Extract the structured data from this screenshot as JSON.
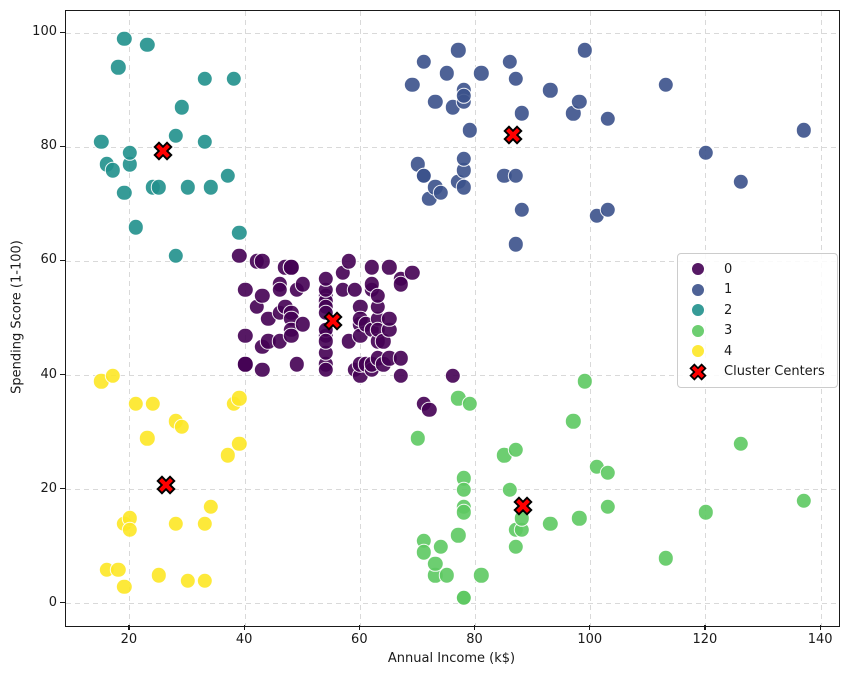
{
  "chart_data": {
    "type": "scatter",
    "title": "",
    "xlabel": "Annual Income (k$)",
    "ylabel": "Spending Score (1-100)",
    "xlim": [
      8.9,
      143.1
    ],
    "ylim": [
      -3.9,
      103.9
    ],
    "x_ticks": [
      20,
      40,
      60,
      80,
      100,
      120,
      140
    ],
    "y_ticks": [
      0,
      20,
      40,
      60,
      80,
      100
    ],
    "grid": true,
    "grid_style": "dashed",
    "legend_position": "center-right",
    "colors": {
      "cluster0": "#440154",
      "cluster1": "#3b528b",
      "cluster2": "#21918c",
      "cluster3": "#5ec962",
      "cluster4": "#fde725",
      "center_fill": "#ff0000",
      "center_edge": "#000000",
      "grid": "#d9d9d9",
      "spine": "#1a1a1a"
    },
    "series": [
      {
        "label": "0",
        "color": "#440154",
        "points": [
          [
            39,
            61
          ],
          [
            40,
            55
          ],
          [
            40,
            47
          ],
          [
            40,
            42
          ],
          [
            40,
            42
          ],
          [
            42,
            52
          ],
          [
            42,
            60
          ],
          [
            43,
            54
          ],
          [
            43,
            60
          ],
          [
            43,
            45
          ],
          [
            43,
            41
          ],
          [
            44,
            50
          ],
          [
            44,
            46
          ],
          [
            46,
            51
          ],
          [
            46,
            46
          ],
          [
            46,
            56
          ],
          [
            46,
            55
          ],
          [
            47,
            52
          ],
          [
            47,
            59
          ],
          [
            48,
            51
          ],
          [
            48,
            59
          ],
          [
            48,
            50
          ],
          [
            48,
            48
          ],
          [
            48,
            59
          ],
          [
            48,
            47
          ],
          [
            49,
            55
          ],
          [
            49,
            42
          ],
          [
            50,
            49
          ],
          [
            50,
            56
          ],
          [
            54,
            47
          ],
          [
            54,
            54
          ],
          [
            54,
            53
          ],
          [
            54,
            48
          ],
          [
            54,
            52
          ],
          [
            54,
            42
          ],
          [
            54,
            51
          ],
          [
            54,
            55
          ],
          [
            54,
            41
          ],
          [
            54,
            44
          ],
          [
            54,
            57
          ],
          [
            54,
            46
          ],
          [
            57,
            58
          ],
          [
            57,
            55
          ],
          [
            58,
            60
          ],
          [
            58,
            46
          ],
          [
            59,
            55
          ],
          [
            59,
            41
          ],
          [
            60,
            49
          ],
          [
            60,
            40
          ],
          [
            60,
            42
          ],
          [
            60,
            52
          ],
          [
            60,
            47
          ],
          [
            60,
            50
          ],
          [
            61,
            42
          ],
          [
            61,
            49
          ],
          [
            62,
            41
          ],
          [
            62,
            48
          ],
          [
            62,
            59
          ],
          [
            62,
            55
          ],
          [
            62,
            56
          ],
          [
            62,
            42
          ],
          [
            63,
            50
          ],
          [
            63,
            46
          ],
          [
            63,
            43
          ],
          [
            63,
            48
          ],
          [
            63,
            52
          ],
          [
            63,
            54
          ],
          [
            64,
            42
          ],
          [
            64,
            46
          ],
          [
            65,
            48
          ],
          [
            65,
            50
          ],
          [
            65,
            43
          ],
          [
            65,
            59
          ],
          [
            67,
            43
          ],
          [
            67,
            57
          ],
          [
            67,
            56
          ],
          [
            67,
            40
          ],
          [
            69,
            58
          ],
          [
            71,
            35
          ],
          [
            72,
            34
          ],
          [
            76,
            40
          ]
        ]
      },
      {
        "label": "1",
        "color": "#3b528b",
        "points": [
          [
            69,
            91
          ],
          [
            70,
            77
          ],
          [
            71,
            95
          ],
          [
            71,
            75
          ],
          [
            71,
            75
          ],
          [
            72,
            71
          ],
          [
            73,
            88
          ],
          [
            73,
            73
          ],
          [
            74,
            72
          ],
          [
            75,
            93
          ],
          [
            76,
            87
          ],
          [
            77,
            97
          ],
          [
            77,
            74
          ],
          [
            78,
            90
          ],
          [
            78,
            88
          ],
          [
            78,
            76
          ],
          [
            78,
            89
          ],
          [
            78,
            78
          ],
          [
            78,
            73
          ],
          [
            79,
            83
          ],
          [
            81,
            93
          ],
          [
            85,
            75
          ],
          [
            86,
            95
          ],
          [
            87,
            63
          ],
          [
            87,
            75
          ],
          [
            87,
            92
          ],
          [
            88,
            86
          ],
          [
            88,
            69
          ],
          [
            93,
            90
          ],
          [
            97,
            86
          ],
          [
            98,
            88
          ],
          [
            99,
            97
          ],
          [
            101,
            68
          ],
          [
            103,
            85
          ],
          [
            103,
            69
          ],
          [
            113,
            91
          ],
          [
            120,
            79
          ],
          [
            126,
            74
          ],
          [
            137,
            83
          ]
        ]
      },
      {
        "label": "2",
        "color": "#21918c",
        "points": [
          [
            15,
            81
          ],
          [
            16,
            77
          ],
          [
            17,
            76
          ],
          [
            18,
            94
          ],
          [
            19,
            72
          ],
          [
            19,
            99
          ],
          [
            20,
            77
          ],
          [
            20,
            79
          ],
          [
            21,
            66
          ],
          [
            23,
            98
          ],
          [
            24,
            73
          ],
          [
            25,
            73
          ],
          [
            28,
            82
          ],
          [
            28,
            61
          ],
          [
            29,
            87
          ],
          [
            30,
            73
          ],
          [
            33,
            92
          ],
          [
            33,
            81
          ],
          [
            34,
            73
          ],
          [
            37,
            75
          ],
          [
            38,
            92
          ],
          [
            39,
            65
          ]
        ]
      },
      {
        "label": "3",
        "color": "#5ec962",
        "points": [
          [
            70,
            29
          ],
          [
            71,
            11
          ],
          [
            71,
            9
          ],
          [
            73,
            5
          ],
          [
            73,
            7
          ],
          [
            74,
            10
          ],
          [
            75,
            5
          ],
          [
            77,
            12
          ],
          [
            77,
            36
          ],
          [
            78,
            22
          ],
          [
            78,
            17
          ],
          [
            78,
            20
          ],
          [
            78,
            16
          ],
          [
            78,
            1
          ],
          [
            78,
            1
          ],
          [
            79,
            35
          ],
          [
            81,
            5
          ],
          [
            85,
            26
          ],
          [
            86,
            20
          ],
          [
            87,
            27
          ],
          [
            87,
            13
          ],
          [
            87,
            10
          ],
          [
            88,
            13
          ],
          [
            88,
            15
          ],
          [
            93,
            14
          ],
          [
            97,
            32
          ],
          [
            98,
            15
          ],
          [
            99,
            39
          ],
          [
            101,
            24
          ],
          [
            103,
            17
          ],
          [
            103,
            23
          ],
          [
            113,
            8
          ],
          [
            120,
            16
          ],
          [
            126,
            28
          ],
          [
            137,
            18
          ]
        ]
      },
      {
        "label": "4",
        "color": "#fde725",
        "points": [
          [
            15,
            39
          ],
          [
            16,
            6
          ],
          [
            17,
            40
          ],
          [
            18,
            6
          ],
          [
            19,
            3
          ],
          [
            19,
            14
          ],
          [
            20,
            15
          ],
          [
            20,
            13
          ],
          [
            21,
            35
          ],
          [
            23,
            29
          ],
          [
            24,
            35
          ],
          [
            25,
            5
          ],
          [
            28,
            14
          ],
          [
            28,
            32
          ],
          [
            29,
            31
          ],
          [
            30,
            4
          ],
          [
            33,
            4
          ],
          [
            33,
            14
          ],
          [
            34,
            17
          ],
          [
            37,
            26
          ],
          [
            38,
            35
          ],
          [
            39,
            36
          ],
          [
            39,
            28
          ]
        ]
      }
    ],
    "centers": {
      "label": "Cluster Centers",
      "color": "#ff0000",
      "edge_color": "#000000",
      "points": [
        [
          55.3,
          49.5
        ],
        [
          86.5,
          82.1
        ],
        [
          25.7,
          79.4
        ],
        [
          88.2,
          17.1
        ],
        [
          26.3,
          20.9
        ]
      ]
    },
    "legend_entries": [
      "0",
      "1",
      "2",
      "3",
      "4",
      "Cluster Centers"
    ]
  }
}
